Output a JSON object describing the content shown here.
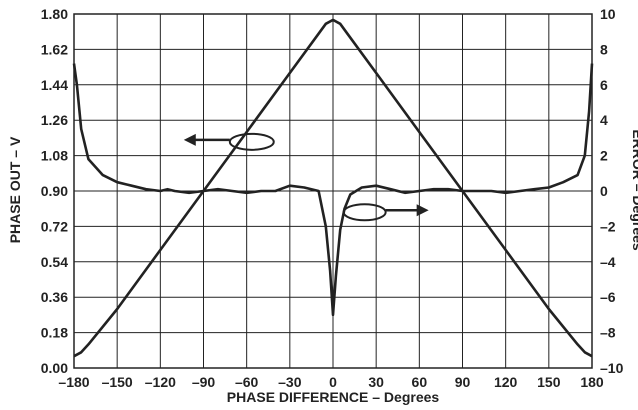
{
  "chart_data": {
    "type": "line",
    "title": "",
    "xlabel": "PHASE DIFFERENCE – Degrees",
    "ylabel": "PHASE OUT – V",
    "y2label": "ERROR – Degrees",
    "xlim": [
      -180,
      180
    ],
    "ylim": [
      0,
      1.8
    ],
    "y2lim": [
      -10,
      10
    ],
    "x_ticks": [
      "–180",
      "–150",
      "–120",
      "–90",
      "–60",
      "–30",
      "0",
      "30",
      "60",
      "90",
      "120",
      "150",
      "180"
    ],
    "y_ticks": [
      "0.00",
      "0.18",
      "0.36",
      "0.54",
      "0.72",
      "0.90",
      "1.08",
      "1.26",
      "1.44",
      "1.62",
      "1.80"
    ],
    "y2_ticks": [
      "–10",
      "–8",
      "–6",
      "–4",
      "–2",
      "0",
      "2",
      "4",
      "6",
      "8",
      "10"
    ],
    "grid": true,
    "series": [
      {
        "axis": "left",
        "x": [
          -180,
          -175,
          -170,
          -150,
          -120,
          -90,
          -60,
          -30,
          -10,
          -5,
          0,
          5,
          10,
          30,
          60,
          90,
          120,
          150,
          170,
          175,
          180
        ],
        "values": [
          0.06,
          0.08,
          0.12,
          0.3,
          0.6,
          0.9,
          1.2,
          1.5,
          1.7,
          1.75,
          1.77,
          1.75,
          1.7,
          1.5,
          1.2,
          0.9,
          0.6,
          0.3,
          0.12,
          0.08,
          0.06
        ]
      },
      {
        "axis": "right",
        "x": [
          -180,
          -178,
          -175,
          -170,
          -160,
          -150,
          -140,
          -130,
          -120,
          -115,
          -110,
          -100,
          -90,
          -80,
          -70,
          -60,
          -50,
          -40,
          -30,
          -20,
          -10,
          -5,
          -2,
          0,
          2,
          5,
          8,
          12,
          20,
          30,
          40,
          50,
          60,
          70,
          80,
          90,
          100,
          110,
          120,
          130,
          140,
          150,
          160,
          170,
          175,
          178,
          180
        ],
        "values": [
          7.2,
          6.0,
          3.5,
          1.8,
          0.9,
          0.5,
          0.3,
          0.1,
          0.0,
          0.1,
          0.0,
          -0.1,
          0.0,
          0.1,
          0.0,
          -0.1,
          0.0,
          0.0,
          0.3,
          0.2,
          0.0,
          -2.0,
          -4.5,
          -7.0,
          -4.8,
          -2.2,
          -1.0,
          -0.2,
          0.2,
          0.3,
          0.1,
          -0.1,
          0.0,
          0.1,
          0.1,
          0.0,
          0.0,
          0.0,
          -0.1,
          0.0,
          0.1,
          0.2,
          0.5,
          0.9,
          2.0,
          4.5,
          7.2
        ]
      }
    ],
    "annotations": [
      {
        "type": "ellipse-arrow",
        "target_axis": "left",
        "direction": "left"
      },
      {
        "type": "ellipse-arrow",
        "target_axis": "right",
        "direction": "right"
      }
    ],
    "colors": {
      "line": "#222222",
      "grid": "#222222",
      "background": "#ffffff"
    }
  }
}
